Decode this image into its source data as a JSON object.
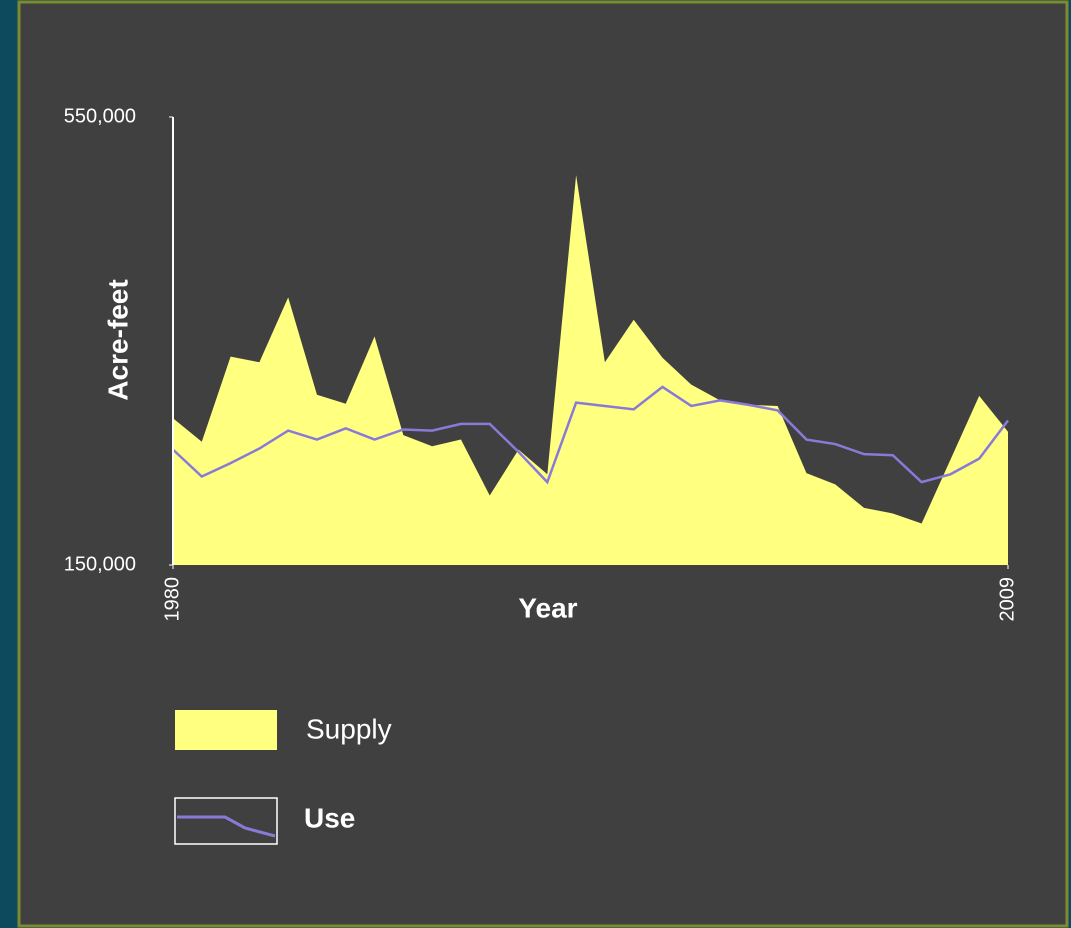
{
  "chart_data": {
    "type": "area_line",
    "xlabel": "Year",
    "ylabel": "Acre-feet",
    "x": [
      1980,
      1981,
      1982,
      1983,
      1984,
      1985,
      1986,
      1987,
      1988,
      1989,
      1990,
      1991,
      1992,
      1993,
      1994,
      1995,
      1996,
      1997,
      1998,
      1999,
      2000,
      2001,
      2002,
      2003,
      2004,
      2005,
      2006,
      2007,
      2008,
      2009
    ],
    "series": [
      {
        "name": "Supply",
        "color": "#ffff80",
        "kind": "area",
        "values": [
          281000,
          260000,
          336000,
          331000,
          389000,
          302000,
          294000,
          354000,
          266000,
          256000,
          262000,
          212000,
          253000,
          231000,
          498000,
          331000,
          369000,
          335000,
          311000,
          297000,
          293000,
          292000,
          232000,
          222000,
          201000,
          196000,
          187000,
          244000,
          301000,
          269000
        ]
      },
      {
        "name": "Use",
        "color": "#8a7ad8",
        "kind": "line",
        "values": [
          253000,
          229000,
          241000,
          254000,
          270000,
          262000,
          272000,
          262000,
          271000,
          270000,
          276000,
          276000,
          251000,
          224000,
          295000,
          292000,
          289000,
          309000,
          292000,
          297000,
          293000,
          288000,
          262000,
          258000,
          249000,
          248000,
          224000,
          231000,
          245000,
          279000
        ]
      }
    ],
    "xlim": [
      1980,
      2009
    ],
    "xticks": [
      1980,
      2009
    ],
    "ylim": [
      150000,
      550000
    ],
    "yticks": [
      {
        "value": 150000,
        "label": "150,000"
      },
      {
        "value": 550000,
        "label": "550,000"
      }
    ]
  }
}
